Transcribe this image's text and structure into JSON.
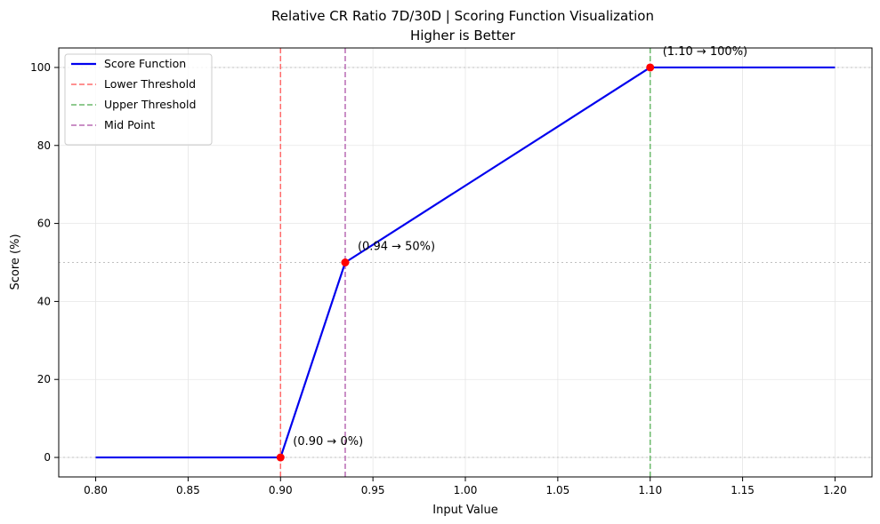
{
  "chart_data": {
    "type": "line",
    "title_line1": "Relative CR Ratio 7D/30D | Scoring Function Visualization",
    "title_line2": "Higher is Better",
    "xlabel": "Input Value",
    "ylabel": "Score (%)",
    "xlim": [
      0.78,
      1.22
    ],
    "ylim": [
      -5,
      105
    ],
    "x_ticks": [
      0.8,
      0.85,
      0.9,
      0.95,
      1.0,
      1.05,
      1.1,
      1.15,
      1.2
    ],
    "x_tick_labels": [
      "0.80",
      "0.85",
      "0.90",
      "0.95",
      "1.00",
      "1.05",
      "1.10",
      "1.15",
      "1.20"
    ],
    "y_ticks": [
      0,
      20,
      40,
      60,
      80,
      100
    ],
    "y_tick_labels": [
      "0",
      "20",
      "40",
      "60",
      "80",
      "100"
    ],
    "grid": true,
    "legend_position": "top-left",
    "series": [
      {
        "name": "Score Function",
        "color": "#0000ee",
        "x": [
          0.8,
          0.9,
          0.935,
          1.1,
          1.2
        ],
        "y": [
          0,
          0,
          50,
          100,
          100
        ]
      }
    ],
    "vertical_lines": [
      {
        "name": "Lower Threshold",
        "x": 0.9,
        "color": "#ff6b6b"
      },
      {
        "name": "Upper Threshold",
        "x": 1.1,
        "color": "#6ab96a"
      },
      {
        "name": "Mid Point",
        "x": 0.935,
        "color": "#b96ab4"
      }
    ],
    "horizontal_reference_lines": [
      0,
      50,
      100
    ],
    "points": [
      {
        "x": 0.9,
        "y": 0,
        "label": "(0.90 → 0%)"
      },
      {
        "x": 0.935,
        "y": 50,
        "label": "(0.94 → 50%)"
      },
      {
        "x": 1.1,
        "y": 100,
        "label": "(1.10 → 100%)"
      }
    ],
    "point_color": "#ff0000"
  }
}
